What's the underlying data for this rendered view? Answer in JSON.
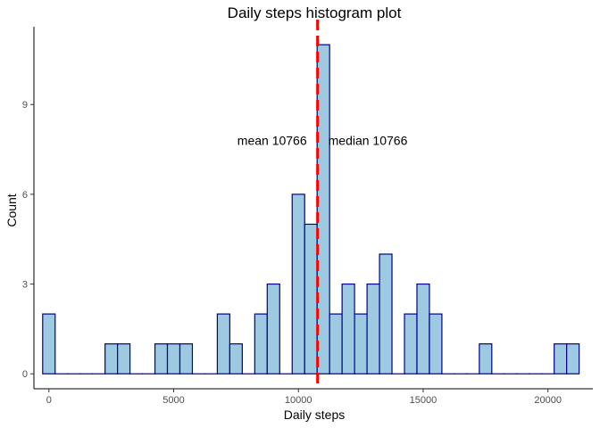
{
  "chart_data": {
    "type": "bar",
    "title": "Daily steps histogram plot",
    "xlabel": "Daily steps",
    "ylabel": "Count",
    "bin_width": 500,
    "x": [
      0,
      500,
      1000,
      1500,
      2000,
      2500,
      3000,
      3500,
      4000,
      4500,
      5000,
      5500,
      6000,
      6500,
      7000,
      7500,
      8000,
      8500,
      9000,
      9500,
      10000,
      10500,
      11000,
      11500,
      12000,
      12500,
      13000,
      13500,
      14000,
      14500,
      15000,
      15500,
      16000,
      16500,
      17000,
      17500,
      18000,
      18500,
      19000,
      19500,
      20000,
      20500,
      21000
    ],
    "values": [
      2,
      0,
      0,
      0,
      0,
      1,
      1,
      0,
      0,
      1,
      1,
      1,
      0,
      0,
      2,
      1,
      0,
      2,
      3,
      0,
      6,
      5,
      11,
      2,
      3,
      2,
      3,
      4,
      0,
      2,
      3,
      2,
      0,
      0,
      0,
      1,
      0,
      0,
      0,
      0,
      0,
      1,
      1
    ],
    "xlim": [
      -600,
      21800
    ],
    "ylim": [
      -0.5,
      11.6
    ],
    "x_ticks": [
      0,
      5000,
      10000,
      15000,
      20000
    ],
    "x_tick_labels": [
      "0",
      "5000",
      "10000",
      "15000",
      "20000"
    ],
    "y_ticks": [
      0,
      3,
      6,
      9
    ],
    "y_tick_labels": [
      "0",
      "3",
      "6",
      "9"
    ],
    "grid": false,
    "bar_fill": "#9ecae1",
    "bar_stroke": "#00008b",
    "mean": 10766,
    "median": 10766,
    "reference_line_color": "#ff0000",
    "annotations": {
      "mean_label": "mean 10766",
      "median_label": "median 10766",
      "label_y": 7.8
    }
  }
}
